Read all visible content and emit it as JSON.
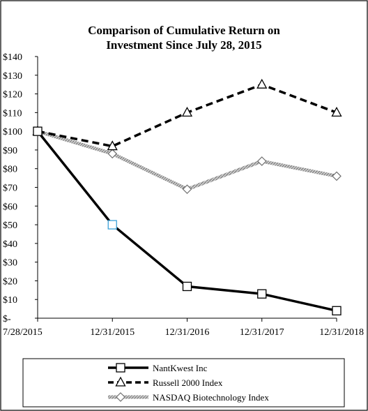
{
  "chart_data": {
    "type": "line",
    "title_lines": [
      "Comparison  of Cumulative  Return on",
      "Investment  Since July 28, 2015"
    ],
    "categories": [
      "7/28/2015",
      "12/31/2015",
      "12/31/2016",
      "12/31/2017",
      "12/31/2018"
    ],
    "y_tick_labels": [
      "$-",
      "$10",
      "$20",
      "$30",
      "$40",
      "$50",
      "$60",
      "$70",
      "$80",
      "$90",
      "$100",
      "$110",
      "$120",
      "$130",
      "$140"
    ],
    "ylim": [
      0,
      140
    ],
    "y_step": 10,
    "grid": false,
    "legend_position": "bottom",
    "series": [
      {
        "name": "NantKwest Inc",
        "values": [
          100,
          50,
          17,
          13,
          4
        ],
        "color": "#000000",
        "line_style": "solid",
        "marker": "square"
      },
      {
        "name": "Russell 2000 Index",
        "values": [
          100,
          92,
          110,
          125,
          110
        ],
        "color": "#000000",
        "line_style": "dashed",
        "marker": "triangle"
      },
      {
        "name": "NASDAQ Biotechnology Index",
        "values": [
          100,
          88,
          69,
          84,
          76
        ],
        "color": "#a0a0a0",
        "line_style": "hatched",
        "marker": "diamond"
      }
    ]
  }
}
